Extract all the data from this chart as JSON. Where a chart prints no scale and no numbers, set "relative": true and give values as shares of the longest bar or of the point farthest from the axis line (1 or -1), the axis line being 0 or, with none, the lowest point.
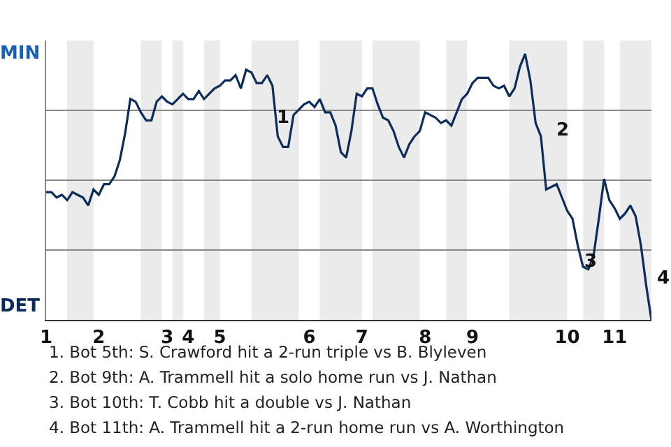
{
  "chart_data": {
    "type": "line",
    "relative": true,
    "categories": [
      "1",
      null,
      null,
      null,
      null,
      null,
      null,
      null,
      null,
      null,
      "2",
      null,
      null,
      null,
      null,
      null,
      null,
      null,
      null,
      null,
      null,
      null,
      null,
      "3",
      null,
      null,
      null,
      "4",
      null,
      null,
      null,
      null,
      null,
      "5",
      null,
      null,
      null,
      null,
      null,
      null,
      null,
      null,
      null,
      null,
      null,
      null,
      null,
      null,
      null,
      null,
      "6",
      null,
      null,
      null,
      null,
      null,
      null,
      null,
      null,
      null,
      "7",
      null,
      null,
      null,
      null,
      null,
      null,
      null,
      null,
      null,
      null,
      null,
      "8",
      null,
      null,
      null,
      null,
      null,
      null,
      null,
      null,
      "9",
      null,
      null,
      null,
      null,
      null,
      null,
      null,
      null,
      null,
      null,
      null,
      null,
      null,
      null,
      null,
      null,
      null,
      "10",
      null,
      null,
      null,
      null,
      null,
      null,
      null,
      null,
      "11",
      null,
      null,
      null,
      null,
      null,
      null,
      null
    ],
    "series": [
      {
        "color": "#0c2c5c",
        "values": [
          0.48,
          0.48,
          0.46,
          0.47,
          0.45,
          0.48,
          0.47,
          0.46,
          0.43,
          0.49,
          0.47,
          0.51,
          0.51,
          0.54,
          0.6,
          0.7,
          0.83,
          0.82,
          0.78,
          0.75,
          0.75,
          0.82,
          0.84,
          0.82,
          0.81,
          0.83,
          0.85,
          0.83,
          0.83,
          0.86,
          0.83,
          0.85,
          0.87,
          0.88,
          0.9,
          0.9,
          0.92,
          0.87,
          0.94,
          0.93,
          0.89,
          0.89,
          0.92,
          0.88,
          0.69,
          0.65,
          0.65,
          0.77,
          0.79,
          0.81,
          0.82,
          0.8,
          0.83,
          0.78,
          0.78,
          0.73,
          0.63,
          0.61,
          0.71,
          0.85,
          0.84,
          0.87,
          0.87,
          0.81,
          0.76,
          0.75,
          0.71,
          0.65,
          0.61,
          0.66,
          0.69,
          0.71,
          0.78,
          0.77,
          0.76,
          0.74,
          0.75,
          0.73,
          0.78,
          0.83,
          0.85,
          0.89,
          0.91,
          0.91,
          0.91,
          0.88,
          0.87,
          0.88,
          0.84,
          0.87,
          0.95,
          1,
          0.9,
          0.74,
          0.69,
          0.49,
          0.5,
          0.51,
          0.46,
          0.41,
          0.38,
          0.28,
          0.2,
          0.19,
          0.24,
          0.38,
          0.53,
          0.45,
          0.42,
          0.38,
          0.4,
          0.43,
          0.39,
          0.28,
          0.13,
          0
        ]
      }
    ],
    "grid": "y",
    "marker": "none",
    "line_style": "solid",
    "annotations": [
      "MIN",
      "DET",
      "1",
      "2",
      "3",
      "4",
      "1. Bot 5th: S. Crawford hit a 2-run triple vs B. Blyleven",
      "2. Bot 9th: A. Trammell hit a solo home run vs J. Nathan",
      "3. Bot 10th: T. Cobb hit a double vs J. Nathan",
      "4. Bot 11th: A. Trammell hit a 2-run home run vs A. Worthington"
    ]
  }
}
